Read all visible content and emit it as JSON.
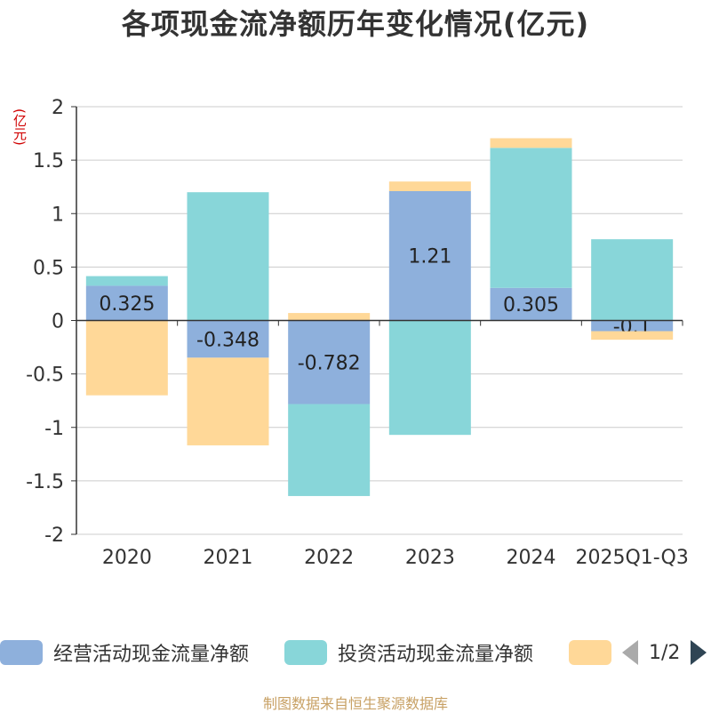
{
  "title": "各项现金流净额历年变化情况(亿元)",
  "unit_label": "(亿元)",
  "legend_page": "1/2",
  "source": "制图数据来自恒生聚源数据库",
  "chart_data": {
    "type": "bar",
    "stacked": true,
    "title": "各项现金流净额历年变化情况(亿元)",
    "ylabel": "(亿元)",
    "ylim": [
      -2,
      2
    ],
    "yticks": [
      2,
      1.5,
      1,
      0.5,
      0,
      -0.5,
      -1,
      -1.5,
      -2
    ],
    "categories": [
      "2020",
      "2021",
      "2022",
      "2023",
      "2024",
      "2025Q1-Q3"
    ],
    "series": [
      {
        "name": "经营活动现金流量净额",
        "color": "#8eb0dc",
        "values": [
          0.325,
          -0.348,
          -0.782,
          1.21,
          0.305,
          -0.1
        ],
        "labels": [
          "0.325",
          "-0.348",
          "-0.782",
          "1.21",
          "0.305",
          "-0.1"
        ]
      },
      {
        "name": "投资活动现金流量净额",
        "color": "#88d6d9",
        "values": [
          0.09,
          1.2,
          -0.86,
          -1.07,
          1.31,
          0.76
        ]
      },
      {
        "name": "",
        "color": "#ffd898",
        "values": [
          -0.7,
          -0.82,
          0.07,
          0.09,
          0.09,
          -0.08
        ]
      }
    ]
  }
}
